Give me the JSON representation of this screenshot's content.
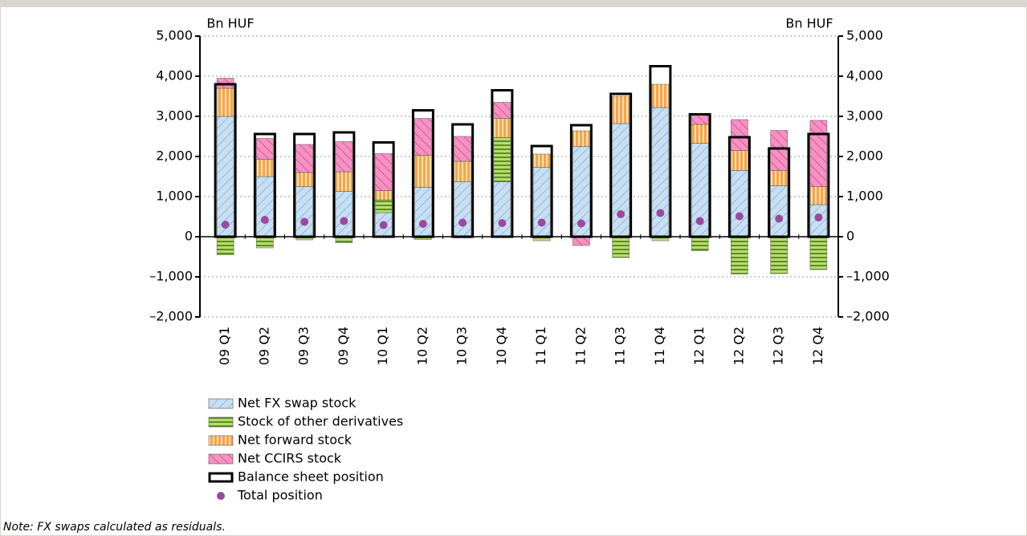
{
  "chart_data": {
    "type": "stacked-bar-dot",
    "y_label": "Bn HUF",
    "y2_label": "Bn HUF",
    "categories": [
      "09 Q1",
      "09 Q2",
      "09 Q3",
      "09 Q4",
      "10 Q1",
      "10 Q2",
      "10 Q3",
      "10 Q4",
      "11 Q1",
      "11 Q2",
      "11 Q3",
      "11 Q4",
      "12 Q1",
      "12 Q2",
      "12 Q3",
      "12 Q4"
    ],
    "series": [
      {
        "name": "Net FX swap stock",
        "color": "#c7dff2",
        "values": [
          3000,
          1500,
          1250,
          1130,
          600,
          1230,
          1370,
          1370,
          1730,
          2250,
          2820,
          3220,
          2330,
          1650,
          1270,
          800
        ]
      },
      {
        "name": "Stock of other derivatives",
        "color": "#9fcc55",
        "values": [
          -450,
          -280,
          -80,
          -150,
          320,
          -70,
          -30,
          1100,
          -100,
          0,
          -520,
          -100,
          -350,
          -930,
          -920,
          -820
        ]
      },
      {
        "name": "Net forward stock",
        "color": "#f7a545",
        "values": [
          700,
          430,
          350,
          490,
          230,
          800,
          510,
          480,
          330,
          390,
          680,
          580,
          470,
          500,
          380,
          450
        ]
      },
      {
        "name": "Net CCIRS stock",
        "color": "#f592c3",
        "values": [
          250,
          520,
          700,
          750,
          920,
          920,
          620,
          400,
          0,
          -220,
          0,
          0,
          250,
          770,
          1000,
          1650
        ]
      },
      {
        "name": "Balance sheet position",
        "color": "#000000",
        "values": [
          3800,
          2560,
          2560,
          2600,
          2350,
          3150,
          2800,
          3650,
          2260,
          2780,
          3560,
          4250,
          3050,
          2480,
          2200,
          2560
        ]
      },
      {
        "name": "Total position",
        "color": "#9a4a9e",
        "values": [
          300,
          420,
          370,
          390,
          290,
          320,
          350,
          340,
          350,
          330,
          560,
          590,
          390,
          510,
          450,
          480
        ]
      }
    ],
    "ylim": [
      -2000,
      5000
    ],
    "yticks": [
      {
        "value": -2000,
        "label": "–2,000"
      },
      {
        "value": -1000,
        "label": "–1,000"
      },
      0,
      {
        "value": 1000,
        "label": "1,000"
      },
      {
        "value": 2000,
        "label": "2,000"
      },
      {
        "value": 3000,
        "label": "3,000"
      },
      {
        "value": 4000,
        "label": "4,000"
      },
      {
        "value": 5000,
        "label": "5,000"
      }
    ],
    "y2lim": [
      -2000,
      5000
    ],
    "y2ticks": [
      {
        "value": -2000,
        "label": "–2,000"
      },
      {
        "value": -1000,
        "label": "–1,000"
      },
      0,
      {
        "value": 1000,
        "label": "1,000"
      },
      {
        "value": 2000,
        "label": "2,000"
      },
      {
        "value": 3000,
        "label": "3,000"
      },
      {
        "value": 4000,
        "label": "4,000"
      },
      {
        "value": 5000,
        "label": "5,000"
      }
    ],
    "grid": true,
    "note": "Note: FX swaps calculated as residuals."
  }
}
